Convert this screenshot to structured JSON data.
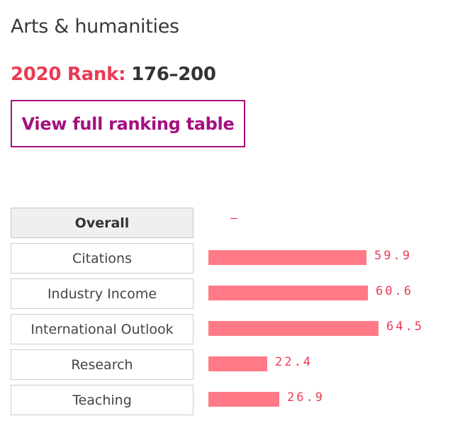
{
  "title": "Arts & humanities",
  "rank": {
    "label": "2020 Rank:",
    "value": "176–200"
  },
  "view_button_label": "View full ranking table",
  "colors": {
    "accent_red": "#ea3b55",
    "button_purple": "#a50f7e",
    "bar_pink": "#ff7a86"
  },
  "scale_max": 100,
  "metrics": [
    {
      "label": "Overall",
      "value": "–",
      "score": null,
      "active": true
    },
    {
      "label": "Citations",
      "value": "59.9",
      "score": 59.9,
      "active": false
    },
    {
      "label": "Industry Income",
      "value": "60.6",
      "score": 60.6,
      "active": false
    },
    {
      "label": "International Outlook",
      "value": "64.5",
      "score": 64.5,
      "active": false
    },
    {
      "label": "Research",
      "value": "22.4",
      "score": 22.4,
      "active": false
    },
    {
      "label": "Teaching",
      "value": "26.9",
      "score": 26.9,
      "active": false
    }
  ]
}
